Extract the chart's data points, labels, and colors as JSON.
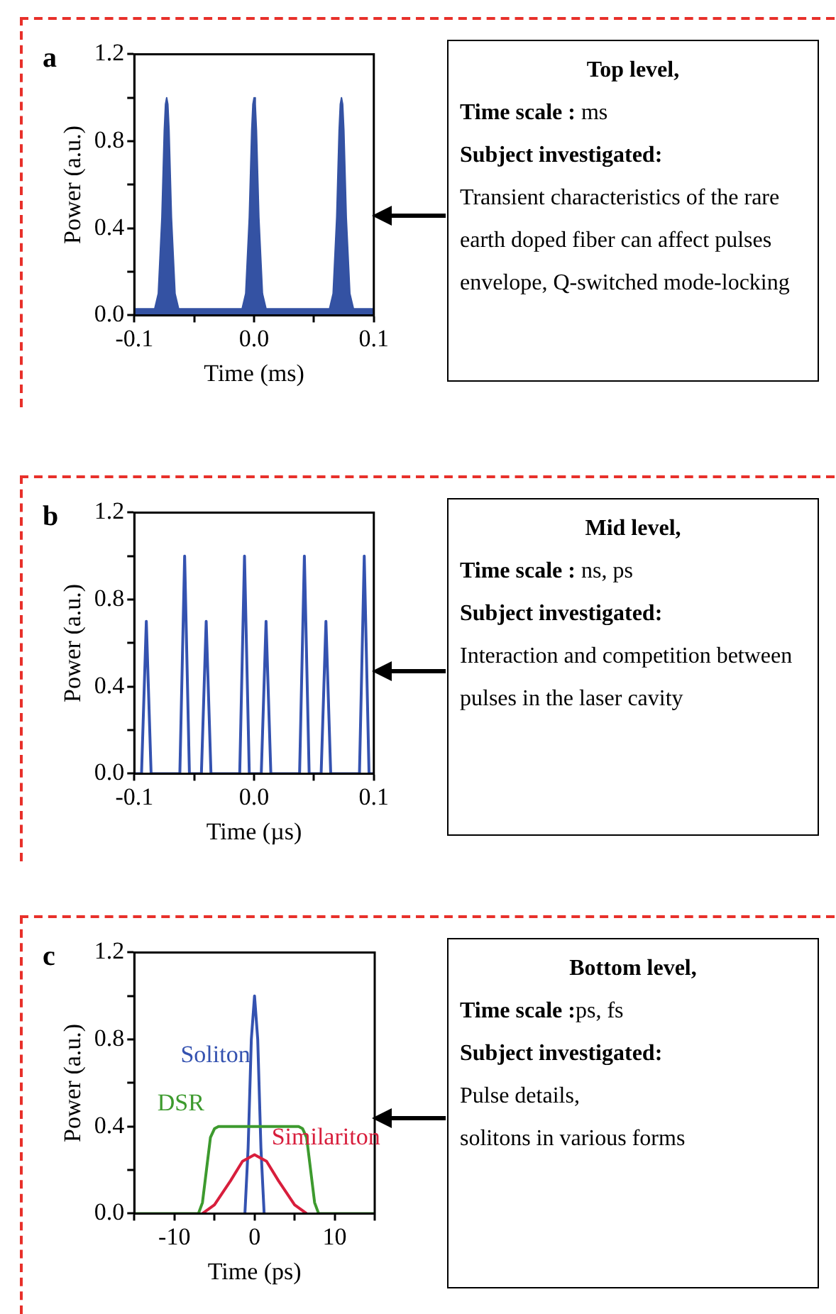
{
  "chart_data": [
    {
      "type": "area",
      "title": "a",
      "xlabel": "Time (ms)",
      "ylabel": "Power (a.u.)",
      "xlim": [
        -0.1,
        0.1
      ],
      "xticks": [
        -0.1,
        {
          "value": -0.05,
          "label": null
        },
        {
          "value": 0,
          "label": "0.0"
        },
        {
          "value": 0.05,
          "label": null
        },
        0.1
      ],
      "ylim": [
        0,
        1.2
      ],
      "yticks": [
        {
          "value": 0,
          "label": "0.0"
        },
        {
          "value": 0.2,
          "label": null
        },
        0.4,
        {
          "value": 0.6,
          "label": null
        },
        0.8,
        {
          "value": 1.0,
          "label": null
        },
        1.2
      ],
      "grid": false,
      "legend": false,
      "series": [
        {
          "color": "#3452a3",
          "x": [
            -0.1,
            -0.083,
            -0.08,
            -0.077,
            -0.075,
            -0.074,
            -0.073,
            -0.072,
            -0.071,
            -0.069,
            -0.066,
            -0.063,
            -0.01,
            -0.007,
            -0.004,
            -0.002,
            -0.001,
            0,
            0.001,
            0.002,
            0.004,
            0.007,
            0.01,
            0.063,
            0.066,
            0.069,
            0.071,
            0.072,
            0.073,
            0.074,
            0.075,
            0.077,
            0.08,
            0.083,
            0.1
          ],
          "values": [
            0.03,
            0.03,
            0.1,
            0.45,
            0.85,
            0.97,
            1.0,
            0.97,
            0.85,
            0.45,
            0.1,
            0.03,
            0.03,
            0.1,
            0.45,
            0.85,
            0.97,
            1.0,
            0.97,
            0.85,
            0.45,
            0.1,
            0.03,
            0.03,
            0.1,
            0.45,
            0.85,
            0.97,
            1.0,
            0.97,
            0.85,
            0.45,
            0.1,
            0.03,
            0.03
          ]
        }
      ],
      "annotations": [
        "Top level,",
        "Time scale : ms",
        "Subject investigated:",
        "Transient characteristics of the rare earth doped fiber can affect pulses envelope, Q-switched mode-locking"
      ]
    },
    {
      "type": "line",
      "title": "b",
      "xlabel": "Time (µs)",
      "ylabel": "Power (a.u.)",
      "xlim": [
        -0.1,
        0.1
      ],
      "xticks": [
        -0.1,
        {
          "value": -0.05,
          "label": null
        },
        {
          "value": 0,
          "label": "0.0"
        },
        {
          "value": 0.05,
          "label": null
        },
        0.1
      ],
      "ylim": [
        0,
        1.2
      ],
      "yticks": [
        {
          "value": 0,
          "label": "0.0"
        },
        {
          "value": 0.2,
          "label": null
        },
        0.4,
        {
          "value": 0.6,
          "label": null
        },
        0.8,
        {
          "value": 1.0,
          "label": null
        },
        1.2
      ],
      "grid": false,
      "legend": false,
      "series": [
        {
          "color": "#3452b0",
          "x": [
            -0.1,
            -0.094,
            -0.092,
            -0.09,
            -0.088,
            -0.086,
            -0.062,
            -0.06,
            -0.058,
            -0.056,
            -0.054,
            -0.044,
            -0.042,
            -0.04,
            -0.038,
            -0.036,
            -0.012,
            -0.01,
            -0.008,
            -0.006,
            -0.004,
            0.006,
            0.008,
            0.01,
            0.012,
            0.014,
            0.038,
            0.04,
            0.042,
            0.044,
            0.046,
            0.056,
            0.058,
            0.06,
            0.062,
            0.064,
            0.088,
            0.09,
            0.092,
            0.094,
            0.096,
            0.1
          ],
          "values": [
            0,
            0,
            0.35,
            0.7,
            0.35,
            0,
            0,
            0.5,
            1.0,
            0.5,
            0,
            0,
            0.35,
            0.7,
            0.35,
            0,
            0,
            0.5,
            1.0,
            0.5,
            0,
            0,
            0.35,
            0.7,
            0.35,
            0,
            0,
            0.5,
            1.0,
            0.5,
            0,
            0,
            0.35,
            0.7,
            0.35,
            0,
            0,
            0.5,
            1.0,
            0.5,
            0,
            0
          ]
        }
      ],
      "annotations": [
        "Mid level,",
        "Time scale : ns, ps",
        "Subject investigated:",
        "Interaction and competition between pulses in the laser cavity"
      ]
    },
    {
      "type": "line",
      "title": "c",
      "xlabel": "Time (ps)",
      "ylabel": "Power (a.u.)",
      "xlim": [
        -15,
        15
      ],
      "xticks": [
        {
          "value": -15,
          "label": null
        },
        -10,
        {
          "value": -5,
          "label": null
        },
        0,
        {
          "value": 5,
          "label": null
        },
        10,
        {
          "value": 15,
          "label": null
        }
      ],
      "ylim": [
        0,
        1.2
      ],
      "yticks": [
        {
          "value": 0,
          "label": "0.0"
        },
        {
          "value": 0.2,
          "label": null
        },
        0.4,
        {
          "value": 0.6,
          "label": null
        },
        0.8,
        {
          "value": 1.0,
          "label": null
        },
        1.2
      ],
      "grid": false,
      "legend": false,
      "series": [
        {
          "name": "DSR",
          "color": "#3d9a2e",
          "x": [
            -15,
            -7,
            -6.5,
            -6,
            -5.5,
            -5,
            -4.5,
            5.5,
            6,
            6.5,
            7,
            7.5,
            8,
            15
          ],
          "values": [
            0,
            0,
            0.05,
            0.2,
            0.35,
            0.39,
            0.4,
            0.4,
            0.39,
            0.35,
            0.2,
            0.05,
            0,
            0
          ]
        },
        {
          "name": "Similariton",
          "color": "#d81e3c",
          "x": [
            -6.5,
            -5,
            -3,
            -1.5,
            0,
            1.5,
            3,
            5,
            6.5
          ],
          "values": [
            0,
            0.04,
            0.15,
            0.24,
            0.27,
            0.24,
            0.15,
            0.04,
            0
          ]
        },
        {
          "name": "Soliton",
          "color": "#3452b0",
          "x": [
            -1.2,
            -0.8,
            -0.4,
            0,
            0.4,
            0.8,
            1.2
          ],
          "values": [
            0,
            0.3,
            0.8,
            1.0,
            0.8,
            0.3,
            0
          ]
        }
      ],
      "annotations": [
        "Bottom level,",
        "Time scale :ps, fs",
        "Subject investigated:",
        "Pulse details,",
        "solitons in various forms"
      ]
    }
  ]
}
